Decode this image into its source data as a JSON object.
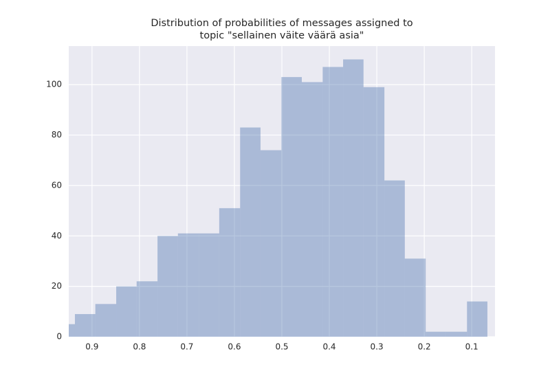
{
  "chart_data": {
    "type": "histogram",
    "title": [
      "Distribution of probabilities of messages assigned to",
      "topic \"sellainen väite väärä asia\""
    ],
    "bins": [
      0.98,
      0.936,
      0.893,
      0.849,
      0.806,
      0.762,
      0.719,
      0.675,
      0.632,
      0.588,
      0.545,
      0.501,
      0.458,
      0.414,
      0.371,
      0.328,
      0.284,
      0.241,
      0.197,
      0.154,
      0.11,
      0.067
    ],
    "values": [
      5,
      9,
      13,
      20,
      22,
      40,
      41,
      41,
      51,
      83,
      74,
      103,
      101,
      107,
      110,
      99,
      62,
      31,
      2,
      2,
      14
    ],
    "color": "#4c72b0",
    "alpha": 0.4,
    "xlim": [
      0.949,
      0.051
    ],
    "xticks": [
      0.9,
      0.8,
      0.7,
      0.6,
      0.5,
      0.4,
      0.3,
      0.2,
      0.1
    ],
    "ylim": [
      0,
      115.3
    ],
    "yticks": [
      0,
      20,
      40,
      60,
      80,
      100
    ],
    "grid": true
  }
}
